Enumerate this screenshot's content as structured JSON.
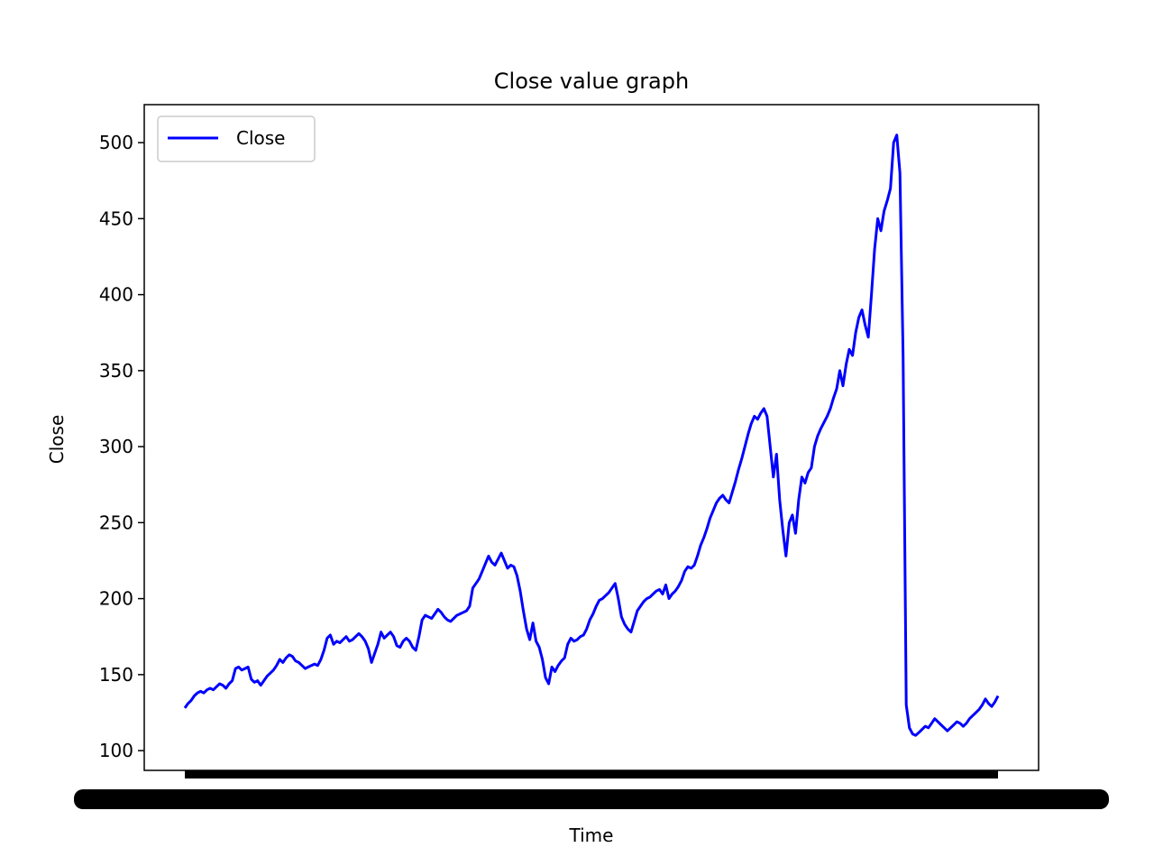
{
  "chart_data": {
    "type": "line",
    "title": "Close value graph",
    "xlabel": "Time",
    "ylabel": "Close",
    "ylim": [
      87,
      525
    ],
    "yticks": [
      100,
      150,
      200,
      250,
      300,
      350,
      400,
      450,
      500
    ],
    "grid": false,
    "legend": {
      "placement": "upper-left",
      "entries": [
        "Close"
      ]
    },
    "series": [
      {
        "name": "Close",
        "color": "#0000ff",
        "values": [
          128,
          131,
          133,
          136,
          138,
          139,
          138,
          140,
          141,
          140,
          142,
          144,
          143,
          141,
          144,
          146,
          154,
          155,
          153,
          154,
          155,
          147,
          145,
          146,
          143,
          146,
          149,
          151,
          153,
          156,
          160,
          158,
          161,
          163,
          162,
          159,
          158,
          156,
          154,
          155,
          156,
          157,
          156,
          160,
          166,
          174,
          176,
          170,
          172,
          171,
          173,
          175,
          172,
          173,
          175,
          177,
          175,
          172,
          167,
          158,
          164,
          170,
          178,
          174,
          176,
          178,
          175,
          169,
          168,
          172,
          174,
          172,
          168,
          166,
          175,
          186,
          189,
          188,
          187,
          190,
          193,
          191,
          188,
          186,
          185,
          187,
          189,
          190,
          191,
          192,
          195,
          207,
          210,
          213,
          218,
          223,
          228,
          224,
          222,
          226,
          230,
          225,
          220,
          222,
          221,
          215,
          205,
          192,
          180,
          173,
          184,
          172,
          168,
          160,
          148,
          144,
          155,
          152,
          156,
          159,
          161,
          170,
          174,
          172,
          173,
          175,
          176,
          180,
          186,
          190,
          195,
          199,
          200,
          202,
          204,
          207,
          210,
          200,
          188,
          183,
          180,
          178,
          185,
          192,
          195,
          198,
          200,
          201,
          203,
          205,
          206,
          203,
          209,
          200,
          203,
          205,
          208,
          212,
          218,
          221,
          220,
          222,
          228,
          235,
          240,
          246,
          253,
          258,
          263,
          266,
          268,
          265,
          263,
          270,
          277,
          285,
          292,
          300,
          308,
          315,
          320,
          318,
          322,
          325,
          320,
          300,
          280,
          295,
          265,
          245,
          228,
          250,
          255,
          243,
          265,
          280,
          276,
          283,
          286,
          300,
          307,
          312,
          316,
          320,
          325,
          332,
          338,
          350,
          340,
          354,
          364,
          360,
          375,
          385,
          390,
          380,
          372,
          400,
          430,
          450,
          442,
          455,
          462,
          470,
          500,
          505,
          480,
          360,
          130,
          115,
          111,
          110,
          112,
          114,
          116,
          115,
          118,
          121,
          119,
          117,
          115,
          113,
          115,
          117,
          119,
          118,
          116,
          118,
          121,
          123,
          125,
          127,
          130,
          134,
          131,
          129,
          132,
          136
        ]
      }
    ]
  }
}
